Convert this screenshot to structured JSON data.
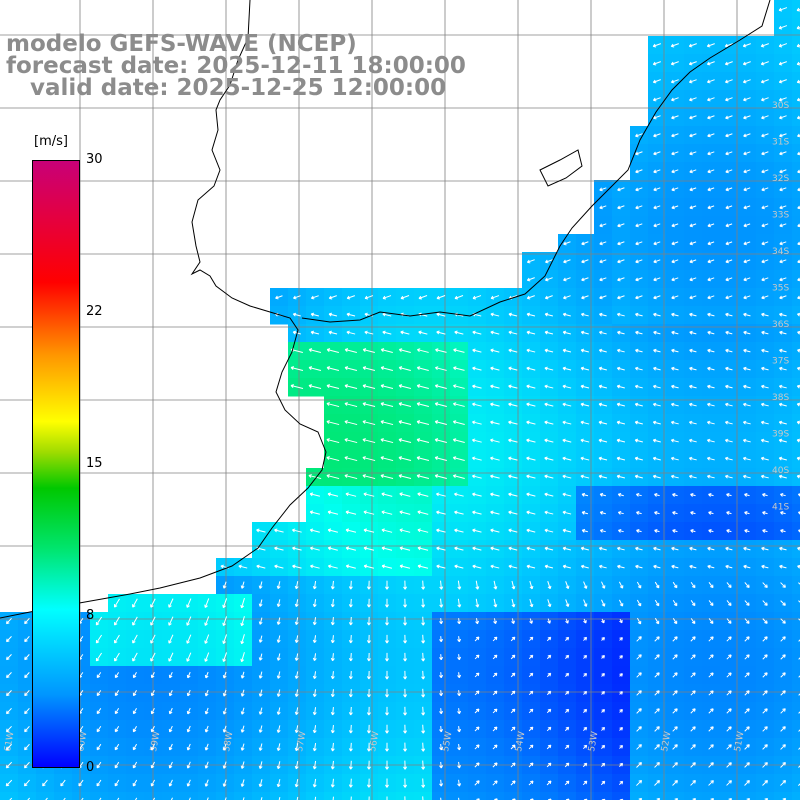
{
  "title": {
    "line1": "modelo GEFS-WAVE (NCEP)",
    "line2": "forecast date: 2025-12-11 18:00:00",
    "line3": "   valid date: 2025-12-25 12:00:00"
  },
  "colorbar": {
    "unit": "[m/s]",
    "labels": [
      "30",
      "22",
      "15",
      "8",
      "0"
    ],
    "min": 0,
    "max": 30,
    "colors": [
      "#0000ff",
      "#0096ff",
      "#00ffff",
      "#00e56e",
      "#00c800",
      "#ffff00",
      "#ff9600",
      "#ff0000",
      "#c80078"
    ]
  },
  "map": {
    "land_color": "#ffffff",
    "grid_color": "#808080",
    "coast_color": "#000000",
    "arrow_color": "#ffffff",
    "lat_labels": [
      "30S",
      "31S",
      "32S",
      "33S",
      "34S",
      "35S",
      "36S",
      "37S",
      "38S",
      "39S",
      "40S",
      "41S"
    ],
    "lon_labels": [
      "61W",
      "60W",
      "59W",
      "58W",
      "57W",
      "56W",
      "55W",
      "54W",
      "53W",
      "52W",
      "51W"
    ]
  }
}
